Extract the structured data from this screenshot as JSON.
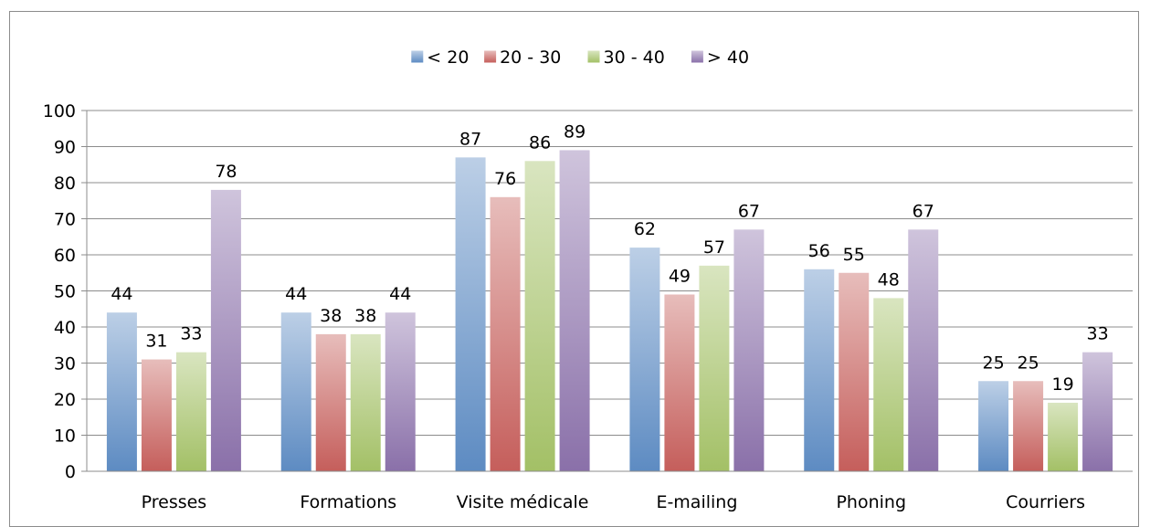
{
  "chart_data": {
    "type": "bar",
    "title": "",
    "xlabel": "",
    "ylabel": "",
    "ylim": [
      0,
      100
    ],
    "yticks": [
      0,
      10,
      20,
      30,
      40,
      50,
      60,
      70,
      80,
      90,
      100
    ],
    "grid": true,
    "legend_position": "top",
    "categories": [
      "Presses",
      "Formations",
      "Visite médicale",
      "E-mailing",
      "Phoning",
      "Courriers"
    ],
    "series": [
      {
        "name": "< 20",
        "color": "#4f81bd",
        "values": [
          44,
          44,
          87,
          62,
          56,
          25
        ]
      },
      {
        "name": "20 - 30",
        "color": "#c0504d",
        "values": [
          31,
          38,
          76,
          49,
          55,
          25
        ]
      },
      {
        "name": "30 - 40",
        "color": "#9bbb59",
        "values": [
          33,
          38,
          86,
          57,
          48,
          19
        ]
      },
      {
        "name": "> 40",
        "color": "#8064a2",
        "values": [
          78,
          44,
          89,
          67,
          67,
          33
        ]
      }
    ]
  }
}
